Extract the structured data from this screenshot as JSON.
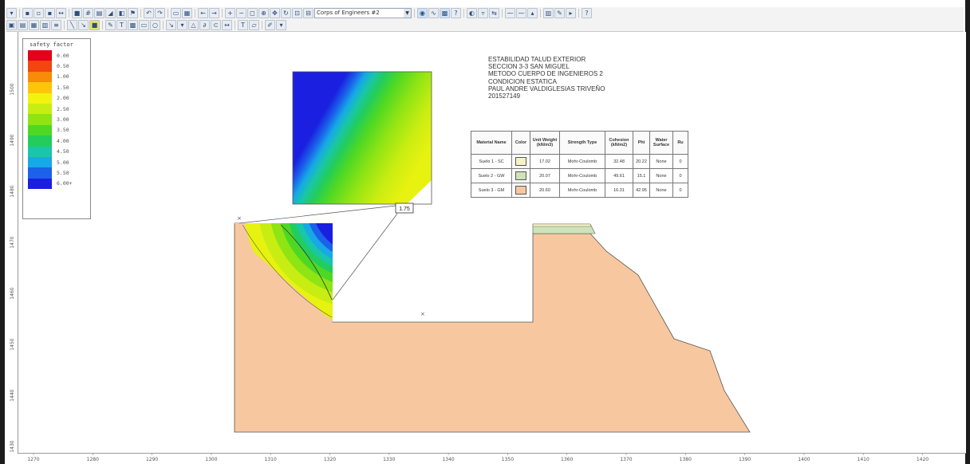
{
  "toolbar": {
    "method_select": "Corps of Engineers #2",
    "row1_icons": [
      "folder-icon",
      "save-icon",
      "print-preview-icon",
      "print-icon",
      "export-icon",
      "select-icon",
      "grid-icon",
      "table-icon",
      "chart-icon",
      "display-icon",
      "options-icon",
      "undo-icon",
      "redo-icon",
      "zoom-in-icon",
      "zoom-out-icon",
      "zoom-window-icon",
      "zoom-all-icon",
      "pan-icon",
      "refresh-icon",
      "zoom-extents-icon"
    ],
    "row2_icons": [
      "compute-icon",
      "interpret-icon",
      "layers-icon",
      "material-icon",
      "properties-icon",
      "boundary-icon",
      "line-icon",
      "rectangle-icon",
      "circle-icon",
      "text-icon",
      "arrow-icon",
      "dimension-icon",
      "measure-icon",
      "note-icon",
      "tools-icon"
    ]
  },
  "legend": {
    "title": "safety factor",
    "values": [
      "0.00",
      "0.50",
      "1.00",
      "1.50",
      "2.00",
      "2.50",
      "3.00",
      "3.50",
      "4.00",
      "4.50",
      "5.00",
      "5.50",
      "6.00+"
    ],
    "colors": [
      "#e4001c",
      "#f2450f",
      "#f88b08",
      "#fbc50a",
      "#f3f20f",
      "#c8ed12",
      "#8fe414",
      "#4fd823",
      "#22cd5c",
      "#19c6a8",
      "#16a9e6",
      "#1b61ea",
      "#1a1fe0"
    ]
  },
  "info_text": [
    "ESTABILIDAD TALUD EXTERIOR",
    "SECCION 3-3 SAN MIGUEL",
    "METODO CUERPO DE INGENIEROS 2",
    "CONDICION ESTATICA",
    "PAUL ANDRE VALDIGLESIAS TRIVEÑO",
    "2015271​49"
  ],
  "material_table": {
    "headers": [
      "Material Name",
      "Color",
      "Unit Weight (kN/m3)",
      "Strength Type",
      "Cohesion (kN/m2)",
      "Phi",
      "Water Surface",
      "Ru"
    ],
    "rows": [
      {
        "name": "Suelo 1 - SC",
        "color": "#f6f3c4",
        "unit_weight": "17.02",
        "strength": "Mohr-Coulomb",
        "cohesion": "32.48",
        "phi": "20.22",
        "water": "None",
        "ru": "0"
      },
      {
        "name": "Suelo 2 - GW",
        "color": "#cfe3b8",
        "unit_weight": "20.07",
        "strength": "Mohr-Coulomb",
        "cohesion": "49.61",
        "phi": "15.1",
        "water": "None",
        "ru": "0"
      },
      {
        "name": "Suelo 3 - GM",
        "color": "#f7c8a0",
        "unit_weight": "20.60",
        "strength": "Mohr-Coulomb",
        "cohesion": "16.31",
        "phi": "42.95",
        "water": "None",
        "ru": "0"
      }
    ]
  },
  "factor_of_safety_label": "1.75",
  "ruler": {
    "left": [
      "1500",
      "1490",
      "1480",
      "1470",
      "1460",
      "1450",
      "1440",
      "1430"
    ],
    "bottom": [
      "1270",
      "1280",
      "1290",
      "1300",
      "1310",
      "1320",
      "1330",
      "1340",
      "1350",
      "1360",
      "1370",
      "1380",
      "1390",
      "1400",
      "1410",
      "1420"
    ]
  }
}
